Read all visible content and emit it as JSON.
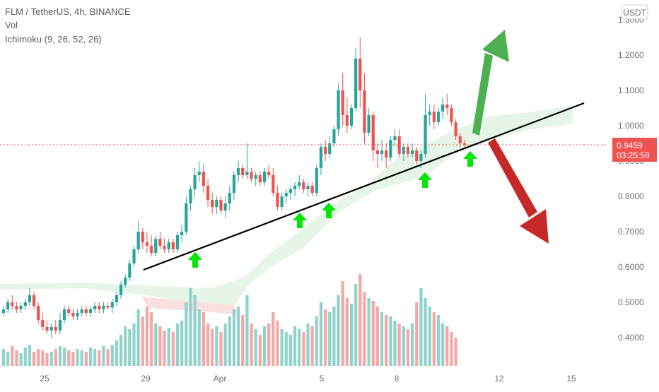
{
  "legend": {
    "title": "FLM / TetherUS, 4h, BINANCE",
    "vol": "Vol",
    "ichimoku": "Ichimoku (9, 26, 52, 26)"
  },
  "currency_badge": "USDT",
  "price_badge": {
    "price": "0.9459",
    "countdown": "03:25:59"
  },
  "colors": {
    "up": "#26a69a",
    "down": "#ef5350",
    "volume_up": "#8fd3cc",
    "volume_down": "#f3a7a6",
    "cloud": "#e3f4e6",
    "cloud_lagging": "#f9dede",
    "trendline": "#000000",
    "arrow_up": "#4caf50",
    "arrow_down": "#c62828",
    "marker": "#00e600",
    "price_line": "#ef5350"
  },
  "chart_data": {
    "type": "candlestick",
    "symbol": "FLM / TetherUS",
    "interval": "4h",
    "exchange": "BINANCE",
    "ylim": [
      0.33,
      1.31
    ],
    "y_ticks": [
      "1.3000",
      "1.2000",
      "1.1000",
      "1.0000",
      "0.9000",
      "0.8000",
      "0.7000",
      "0.6000",
      "0.5000",
      "0.4000"
    ],
    "x_ticks": [
      "25",
      "29",
      "Apr",
      "5",
      "8",
      "12",
      "15"
    ],
    "last_price": 0.9459,
    "candles": [
      {
        "o": 0.47,
        "h": 0.49,
        "l": 0.46,
        "c": 0.48
      },
      {
        "o": 0.48,
        "h": 0.51,
        "l": 0.47,
        "c": 0.5
      },
      {
        "o": 0.5,
        "h": 0.52,
        "l": 0.48,
        "c": 0.49
      },
      {
        "o": 0.49,
        "h": 0.5,
        "l": 0.47,
        "c": 0.48
      },
      {
        "o": 0.48,
        "h": 0.5,
        "l": 0.47,
        "c": 0.49
      },
      {
        "o": 0.49,
        "h": 0.51,
        "l": 0.48,
        "c": 0.5
      },
      {
        "o": 0.5,
        "h": 0.54,
        "l": 0.49,
        "c": 0.52
      },
      {
        "o": 0.52,
        "h": 0.53,
        "l": 0.48,
        "c": 0.49
      },
      {
        "o": 0.49,
        "h": 0.5,
        "l": 0.44,
        "c": 0.45
      },
      {
        "o": 0.45,
        "h": 0.47,
        "l": 0.42,
        "c": 0.43
      },
      {
        "o": 0.43,
        "h": 0.45,
        "l": 0.41,
        "c": 0.42
      },
      {
        "o": 0.42,
        "h": 0.44,
        "l": 0.4,
        "c": 0.43
      },
      {
        "o": 0.43,
        "h": 0.45,
        "l": 0.41,
        "c": 0.42
      },
      {
        "o": 0.42,
        "h": 0.47,
        "l": 0.41,
        "c": 0.45
      },
      {
        "o": 0.45,
        "h": 0.49,
        "l": 0.44,
        "c": 0.48
      },
      {
        "o": 0.48,
        "h": 0.49,
        "l": 0.46,
        "c": 0.47
      },
      {
        "o": 0.47,
        "h": 0.48,
        "l": 0.45,
        "c": 0.46
      },
      {
        "o": 0.46,
        "h": 0.48,
        "l": 0.45,
        "c": 0.47
      },
      {
        "o": 0.47,
        "h": 0.49,
        "l": 0.46,
        "c": 0.48
      },
      {
        "o": 0.48,
        "h": 0.49,
        "l": 0.46,
        "c": 0.47
      },
      {
        "o": 0.47,
        "h": 0.49,
        "l": 0.46,
        "c": 0.48
      },
      {
        "o": 0.48,
        "h": 0.5,
        "l": 0.47,
        "c": 0.49
      },
      {
        "o": 0.49,
        "h": 0.5,
        "l": 0.47,
        "c": 0.48
      },
      {
        "o": 0.48,
        "h": 0.5,
        "l": 0.47,
        "c": 0.49
      },
      {
        "o": 0.49,
        "h": 0.5,
        "l": 0.48,
        "c": 0.485
      },
      {
        "o": 0.485,
        "h": 0.51,
        "l": 0.47,
        "c": 0.5
      },
      {
        "o": 0.5,
        "h": 0.53,
        "l": 0.49,
        "c": 0.52
      },
      {
        "o": 0.52,
        "h": 0.56,
        "l": 0.51,
        "c": 0.55
      },
      {
        "o": 0.55,
        "h": 0.58,
        "l": 0.54,
        "c": 0.57
      },
      {
        "o": 0.57,
        "h": 0.62,
        "l": 0.56,
        "c": 0.61
      },
      {
        "o": 0.61,
        "h": 0.66,
        "l": 0.6,
        "c": 0.65
      },
      {
        "o": 0.65,
        "h": 0.73,
        "l": 0.64,
        "c": 0.7
      },
      {
        "o": 0.7,
        "h": 0.71,
        "l": 0.65,
        "c": 0.67
      },
      {
        "o": 0.67,
        "h": 0.7,
        "l": 0.64,
        "c": 0.66
      },
      {
        "o": 0.66,
        "h": 0.69,
        "l": 0.63,
        "c": 0.64
      },
      {
        "o": 0.64,
        "h": 0.69,
        "l": 0.63,
        "c": 0.68
      },
      {
        "o": 0.68,
        "h": 0.7,
        "l": 0.65,
        "c": 0.66
      },
      {
        "o": 0.66,
        "h": 0.68,
        "l": 0.64,
        "c": 0.65
      },
      {
        "o": 0.65,
        "h": 0.68,
        "l": 0.64,
        "c": 0.67
      },
      {
        "o": 0.67,
        "h": 0.68,
        "l": 0.64,
        "c": 0.65
      },
      {
        "o": 0.65,
        "h": 0.7,
        "l": 0.64,
        "c": 0.69
      },
      {
        "o": 0.69,
        "h": 0.72,
        "l": 0.67,
        "c": 0.7
      },
      {
        "o": 0.7,
        "h": 0.8,
        "l": 0.69,
        "c": 0.78
      },
      {
        "o": 0.78,
        "h": 0.83,
        "l": 0.76,
        "c": 0.82
      },
      {
        "o": 0.82,
        "h": 0.88,
        "l": 0.8,
        "c": 0.86
      },
      {
        "o": 0.86,
        "h": 0.9,
        "l": 0.84,
        "c": 0.87
      },
      {
        "o": 0.87,
        "h": 0.89,
        "l": 0.81,
        "c": 0.83
      },
      {
        "o": 0.83,
        "h": 0.85,
        "l": 0.77,
        "c": 0.79
      },
      {
        "o": 0.79,
        "h": 0.81,
        "l": 0.75,
        "c": 0.77
      },
      {
        "o": 0.77,
        "h": 0.8,
        "l": 0.75,
        "c": 0.79
      },
      {
        "o": 0.79,
        "h": 0.8,
        "l": 0.75,
        "c": 0.76
      },
      {
        "o": 0.76,
        "h": 0.8,
        "l": 0.74,
        "c": 0.78
      },
      {
        "o": 0.78,
        "h": 0.83,
        "l": 0.76,
        "c": 0.81
      },
      {
        "o": 0.81,
        "h": 0.87,
        "l": 0.79,
        "c": 0.86
      },
      {
        "o": 0.86,
        "h": 0.9,
        "l": 0.84,
        "c": 0.88
      },
      {
        "o": 0.88,
        "h": 0.89,
        "l": 0.85,
        "c": 0.86
      },
      {
        "o": 0.86,
        "h": 0.95,
        "l": 0.85,
        "c": 0.87
      },
      {
        "o": 0.87,
        "h": 0.88,
        "l": 0.84,
        "c": 0.85
      },
      {
        "o": 0.85,
        "h": 0.87,
        "l": 0.83,
        "c": 0.86
      },
      {
        "o": 0.86,
        "h": 0.87,
        "l": 0.83,
        "c": 0.84
      },
      {
        "o": 0.84,
        "h": 0.88,
        "l": 0.83,
        "c": 0.87
      },
      {
        "o": 0.87,
        "h": 0.89,
        "l": 0.85,
        "c": 0.86
      },
      {
        "o": 0.86,
        "h": 0.88,
        "l": 0.8,
        "c": 0.81
      },
      {
        "o": 0.81,
        "h": 0.83,
        "l": 0.76,
        "c": 0.77
      },
      {
        "o": 0.77,
        "h": 0.81,
        "l": 0.76,
        "c": 0.8
      },
      {
        "o": 0.8,
        "h": 0.82,
        "l": 0.78,
        "c": 0.81
      },
      {
        "o": 0.81,
        "h": 0.83,
        "l": 0.79,
        "c": 0.82
      },
      {
        "o": 0.82,
        "h": 0.84,
        "l": 0.8,
        "c": 0.83
      },
      {
        "o": 0.83,
        "h": 0.86,
        "l": 0.82,
        "c": 0.84
      },
      {
        "o": 0.84,
        "h": 0.85,
        "l": 0.81,
        "c": 0.82
      },
      {
        "o": 0.82,
        "h": 0.84,
        "l": 0.8,
        "c": 0.83
      },
      {
        "o": 0.83,
        "h": 0.84,
        "l": 0.8,
        "c": 0.81
      },
      {
        "o": 0.81,
        "h": 0.89,
        "l": 0.8,
        "c": 0.88
      },
      {
        "o": 0.88,
        "h": 0.95,
        "l": 0.86,
        "c": 0.94
      },
      {
        "o": 0.94,
        "h": 0.96,
        "l": 0.9,
        "c": 0.92
      },
      {
        "o": 0.92,
        "h": 0.97,
        "l": 0.91,
        "c": 0.95
      },
      {
        "o": 0.95,
        "h": 1.0,
        "l": 0.94,
        "c": 0.99
      },
      {
        "o": 0.99,
        "h": 1.12,
        "l": 0.97,
        "c": 1.1
      },
      {
        "o": 1.1,
        "h": 1.15,
        "l": 1.0,
        "c": 1.03
      },
      {
        "o": 1.03,
        "h": 1.08,
        "l": 0.98,
        "c": 1.0
      },
      {
        "o": 1.0,
        "h": 1.06,
        "l": 0.99,
        "c": 1.05
      },
      {
        "o": 1.05,
        "h": 1.22,
        "l": 1.04,
        "c": 1.19
      },
      {
        "o": 1.19,
        "h": 1.25,
        "l": 1.05,
        "c": 1.1
      },
      {
        "o": 1.1,
        "h": 1.15,
        "l": 0.95,
        "c": 0.98
      },
      {
        "o": 0.98,
        "h": 1.05,
        "l": 0.97,
        "c": 1.03
      },
      {
        "o": 1.03,
        "h": 1.04,
        "l": 0.9,
        "c": 0.93
      },
      {
        "o": 0.93,
        "h": 0.95,
        "l": 0.88,
        "c": 0.92
      },
      {
        "o": 0.92,
        "h": 0.96,
        "l": 0.9,
        "c": 0.93
      },
      {
        "o": 0.93,
        "h": 0.95,
        "l": 0.88,
        "c": 0.91
      },
      {
        "o": 0.91,
        "h": 0.97,
        "l": 0.9,
        "c": 0.96
      },
      {
        "o": 0.96,
        "h": 0.99,
        "l": 0.94,
        "c": 0.97
      },
      {
        "o": 0.97,
        "h": 0.99,
        "l": 0.91,
        "c": 0.92
      },
      {
        "o": 0.92,
        "h": 0.95,
        "l": 0.9,
        "c": 0.94
      },
      {
        "o": 0.94,
        "h": 0.95,
        "l": 0.91,
        "c": 0.92
      },
      {
        "o": 0.92,
        "h": 0.95,
        "l": 0.91,
        "c": 0.93
      },
      {
        "o": 0.93,
        "h": 0.94,
        "l": 0.89,
        "c": 0.9
      },
      {
        "o": 0.9,
        "h": 0.93,
        "l": 0.88,
        "c": 0.92
      },
      {
        "o": 0.92,
        "h": 1.09,
        "l": 0.91,
        "c": 1.03
      },
      {
        "o": 1.03,
        "h": 1.06,
        "l": 1.0,
        "c": 1.04
      },
      {
        "o": 1.04,
        "h": 1.06,
        "l": 0.99,
        "c": 1.01
      },
      {
        "o": 1.01,
        "h": 1.05,
        "l": 1.0,
        "c": 1.04
      },
      {
        "o": 1.04,
        "h": 1.08,
        "l": 1.02,
        "c": 1.06
      },
      {
        "o": 1.06,
        "h": 1.09,
        "l": 1.03,
        "c": 1.05
      },
      {
        "o": 1.05,
        "h": 1.06,
        "l": 1.0,
        "c": 1.01
      },
      {
        "o": 1.01,
        "h": 1.02,
        "l": 0.96,
        "c": 0.97
      },
      {
        "o": 0.97,
        "h": 0.98,
        "l": 0.94,
        "c": 0.95
      },
      {
        "o": 0.95,
        "h": 0.96,
        "l": 0.94,
        "c": 0.9459
      }
    ],
    "volume": [
      12,
      10,
      14,
      11,
      9,
      13,
      15,
      10,
      12,
      11,
      9,
      10,
      12,
      14,
      13,
      11,
      10,
      12,
      11,
      10,
      13,
      12,
      11,
      14,
      12,
      15,
      18,
      22,
      28,
      26,
      30,
      40,
      35,
      42,
      38,
      30,
      28,
      25,
      27,
      24,
      30,
      32,
      45,
      55,
      50,
      40,
      38,
      30,
      26,
      28,
      24,
      30,
      35,
      40,
      42,
      36,
      50,
      30,
      26,
      22,
      28,
      30,
      38,
      32,
      26,
      24,
      22,
      28,
      26,
      24,
      30,
      28,
      35,
      45,
      40,
      38,
      42,
      50,
      60,
      48,
      44,
      58,
      65,
      52,
      48,
      46,
      42,
      38,
      36,
      35,
      32,
      30,
      28,
      26,
      30,
      45,
      55,
      48,
      42,
      38,
      36,
      30,
      28,
      24,
      20
    ]
  }
}
